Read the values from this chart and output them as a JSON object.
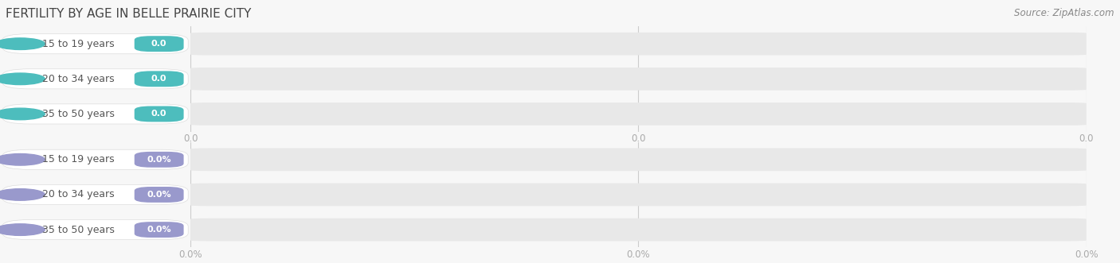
{
  "title": "FERTILITY BY AGE IN BELLE PRAIRIE CITY",
  "source": "Source: ZipAtlas.com",
  "top_section": {
    "categories": [
      "15 to 19 years",
      "20 to 34 years",
      "35 to 50 years"
    ],
    "values": [
      0.0,
      0.0,
      0.0
    ],
    "bar_color": "#4DBDBD",
    "value_labels": [
      "0.0",
      "0.0",
      "0.0"
    ],
    "x_tick_labels": [
      "0.0",
      "0.0",
      "0.0"
    ]
  },
  "bottom_section": {
    "categories": [
      "15 to 19 years",
      "20 to 34 years",
      "35 to 50 years"
    ],
    "values": [
      0.0,
      0.0,
      0.0
    ],
    "bar_color": "#9999CC",
    "value_labels": [
      "0.0%",
      "0.0%",
      "0.0%"
    ],
    "x_tick_labels": [
      "0.0%",
      "0.0%",
      "0.0%"
    ]
  },
  "bg_color": "#f7f7f7",
  "bar_bg_color": "#e8e8e8",
  "title_fontsize": 11,
  "source_fontsize": 8.5
}
